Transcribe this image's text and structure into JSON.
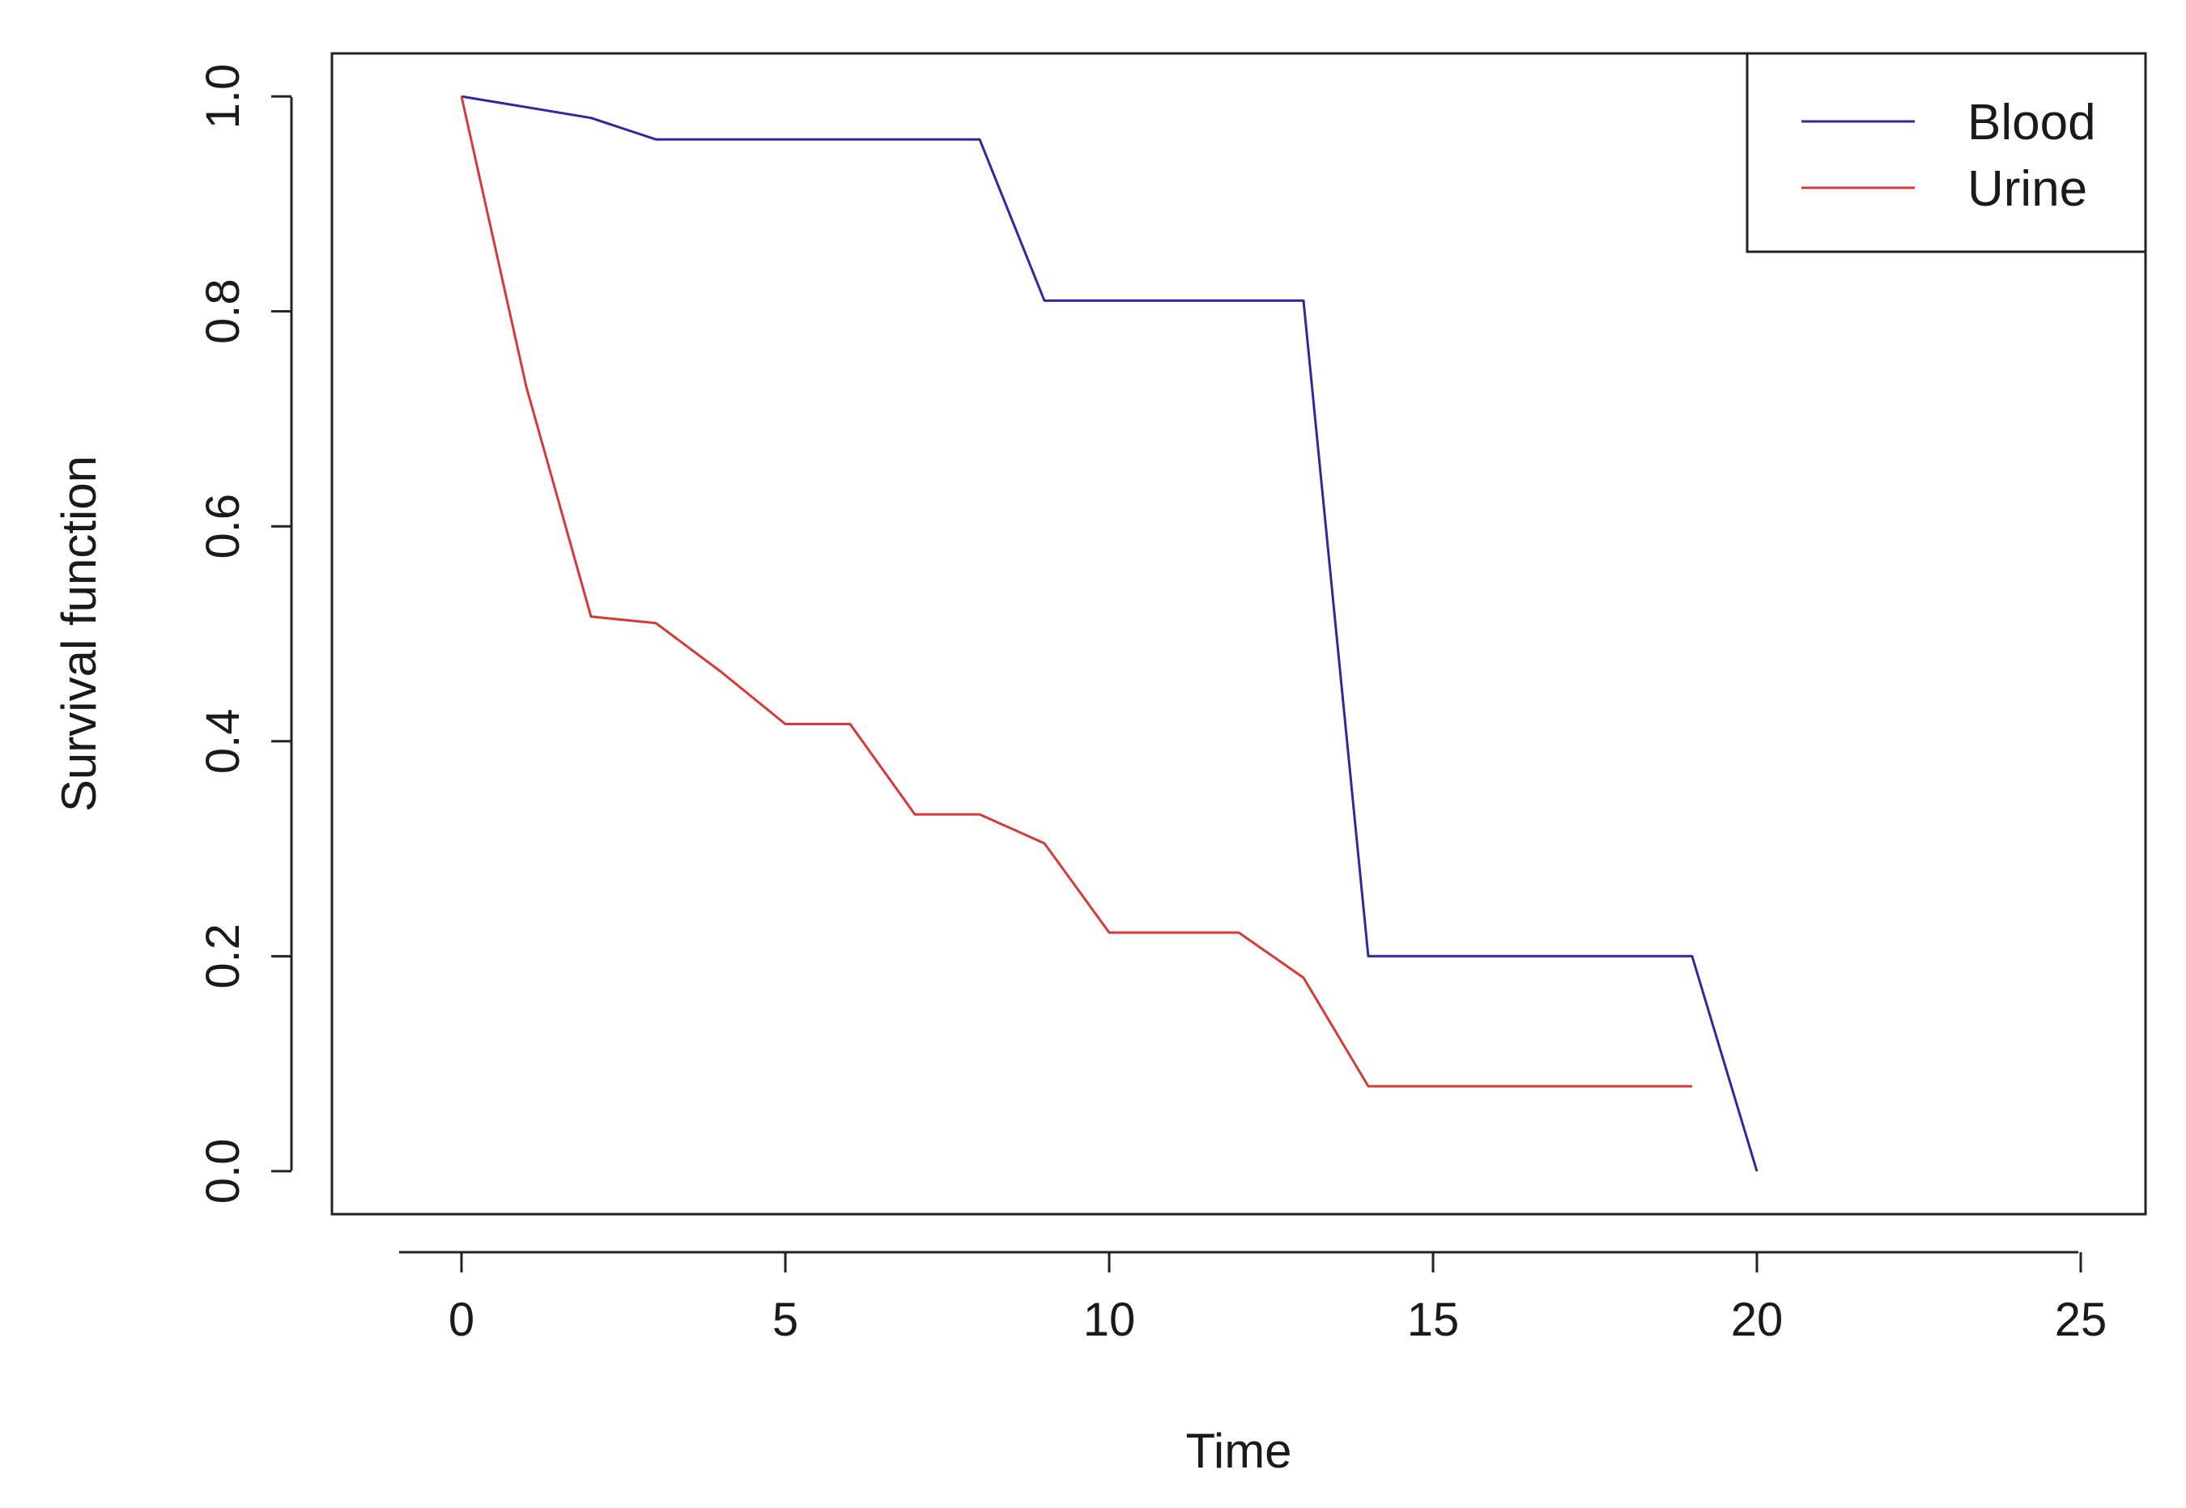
{
  "chart_data": {
    "type": "line",
    "xlabel": "Time",
    "ylabel": "Survival function",
    "xlim": [
      -2,
      26
    ],
    "ylim": [
      -0.04,
      1.04
    ],
    "x_ticks": [
      0,
      5,
      10,
      15,
      20,
      25
    ],
    "x_tick_labels": [
      "0",
      "5",
      "10",
      "15",
      "20",
      "25"
    ],
    "y_ticks": [
      0.0,
      0.2,
      0.4,
      0.6,
      0.8,
      1.0
    ],
    "y_tick_labels": [
      "0.0",
      "0.2",
      "0.4",
      "0.6",
      "0.8",
      "1.0"
    ],
    "grid": false,
    "legend_position": "top-right",
    "series": [
      {
        "name": "Blood",
        "color": "#2b2b9e",
        "x": [
          0,
          2,
          3,
          8,
          9,
          13,
          14,
          19,
          20
        ],
        "y": [
          1.0,
          0.98,
          0.96,
          0.96,
          0.81,
          0.81,
          0.2,
          0.2,
          0.0
        ]
      },
      {
        "name": "Urine",
        "color": "#d43a3a",
        "x": [
          0,
          1,
          2,
          3,
          4,
          5,
          6,
          7,
          8,
          9,
          10,
          11,
          12,
          13,
          14,
          15,
          16,
          17,
          18,
          19
        ],
        "y": [
          1.0,
          0.73,
          0.516,
          0.51,
          0.465,
          0.416,
          0.416,
          0.332,
          0.332,
          0.305,
          0.222,
          0.222,
          0.222,
          0.18,
          0.079,
          0.079,
          0.079,
          0.079,
          0.079,
          0.079
        ]
      }
    ]
  }
}
